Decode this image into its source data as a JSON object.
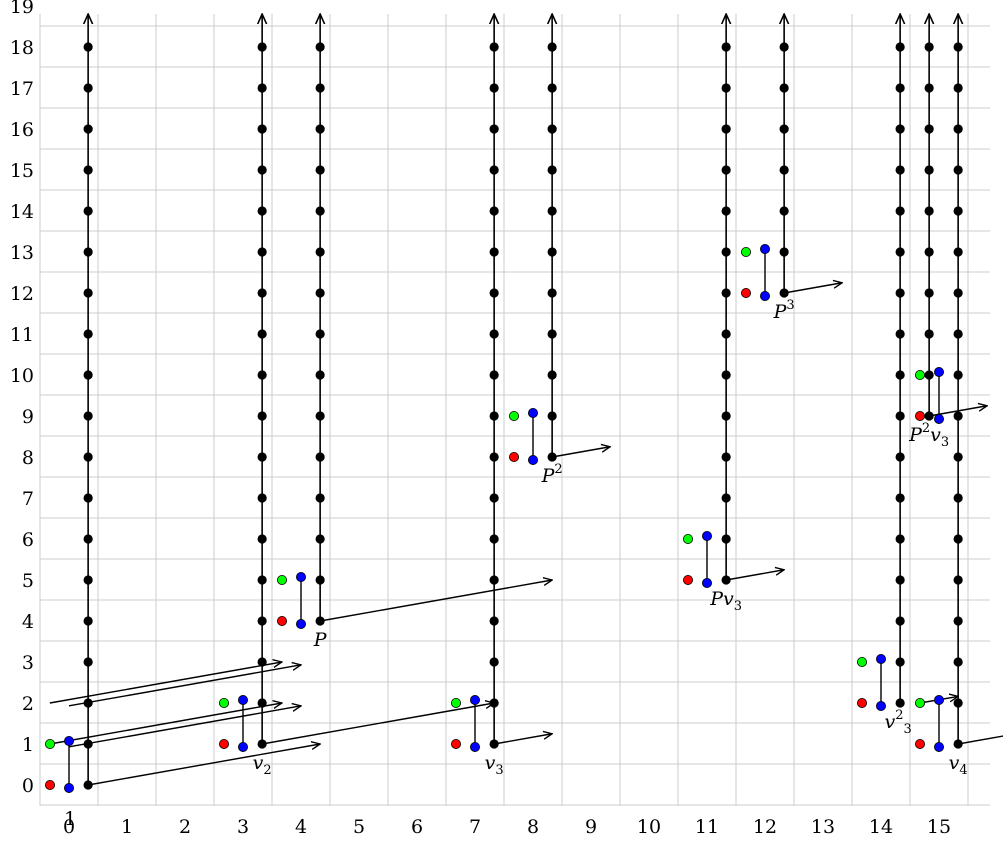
{
  "chart_data": {
    "type": "diagram",
    "xlim": [
      -0.5,
      15.5
    ],
    "ylim": [
      -0.5,
      19
    ],
    "x_ticks": [
      "0",
      "1",
      "2",
      "3",
      "4",
      "5",
      "6",
      "7",
      "8",
      "9",
      "10",
      "11",
      "12",
      "13",
      "14",
      "15"
    ],
    "y_ticks": [
      "0",
      "1",
      "2",
      "3",
      "4",
      "5",
      "6",
      "7",
      "8",
      "9",
      "10",
      "11",
      "12",
      "13",
      "14",
      "15",
      "16",
      "17",
      "18",
      "19"
    ],
    "grid": true,
    "colors": {
      "red": "#ff0000",
      "green": "#00ff00",
      "blue": "#0000ff",
      "black": "#000000",
      "grid": "#cccccc"
    },
    "columns": [
      {
        "x": 0.33,
        "y_start": 0,
        "y_end": 18,
        "arrow": true,
        "label": "1"
      },
      {
        "x": 3.33,
        "y_start": 1,
        "y_end": 18,
        "arrow": true,
        "label": "v2"
      },
      {
        "x": 4.33,
        "y_start": 4,
        "y_end": 18,
        "arrow": true,
        "label": "P"
      },
      {
        "x": 7.33,
        "y_start": 1,
        "y_end": 18,
        "arrow": true,
        "label": "v3"
      },
      {
        "x": 8.33,
        "y_start": 8,
        "y_end": 18,
        "arrow": true,
        "label": "P2"
      },
      {
        "x": 11.33,
        "y_start": 5,
        "y_end": 18,
        "arrow": true,
        "label": "Pv3"
      },
      {
        "x": 12.33,
        "y_start": 12,
        "y_end": 18,
        "arrow": true,
        "label": "P3"
      },
      {
        "x": 14.33,
        "y_start": 2,
        "y_end": 18,
        "arrow": true,
        "label": "v3^2"
      },
      {
        "x": 14.83,
        "y_start": 9,
        "y_end": 18,
        "arrow": true,
        "label": "P2v3"
      },
      {
        "x": 15.33,
        "y_start": 1,
        "y_end": 18,
        "arrow": true,
        "label": "v4"
      }
    ],
    "groups": [
      {
        "x": 0,
        "y": 1
      },
      {
        "x": 3,
        "y": 2
      },
      {
        "x": 4,
        "y": 5
      },
      {
        "x": 7,
        "y": 2
      },
      {
        "x": 8,
        "y": 9
      },
      {
        "x": 11,
        "y": 6
      },
      {
        "x": 12,
        "y": 13
      },
      {
        "x": 14,
        "y": 3
      },
      {
        "x": 15,
        "y": 2
      },
      {
        "x": 15,
        "y": 10
      }
    ],
    "arrows": [
      {
        "from": [
          0.33,
          0
        ],
        "to": [
          4.33,
          1
        ]
      },
      {
        "from": [
          3.33,
          1
        ],
        "to": [
          7.33,
          2
        ]
      },
      {
        "from": [
          4.33,
          4
        ],
        "to": [
          8.33,
          5
        ]
      },
      {
        "from": [
          7.33,
          1
        ],
        "to": [
          8.33,
          1.25
        ]
      },
      {
        "from": [
          8.33,
          8
        ],
        "to": [
          9.33,
          8.25
        ]
      },
      {
        "from": [
          11.33,
          5
        ],
        "to": [
          12.33,
          5.25
        ]
      },
      {
        "from": [
          12.33,
          12
        ],
        "to": [
          13.33,
          12.25
        ]
      },
      {
        "from": [
          14.83,
          9
        ],
        "to": [
          15.83,
          9.25
        ]
      },
      {
        "from": [
          15.33,
          1
        ],
        "to": [
          16.33,
          1.25
        ]
      },
      {
        "from": [
          -0.33,
          1
        ],
        "to": [
          3.67,
          2
        ]
      },
      {
        "from": [
          0,
          0.93
        ],
        "to": [
          4,
          1.93
        ]
      },
      {
        "from": [
          -0.33,
          2
        ],
        "to": [
          3.67,
          3
        ]
      },
      {
        "from": [
          0,
          1.93
        ],
        "to": [
          4,
          2.93
        ]
      },
      {
        "from": [
          14.67,
          2
        ],
        "to": [
          15.33,
          2.16
        ]
      }
    ]
  }
}
